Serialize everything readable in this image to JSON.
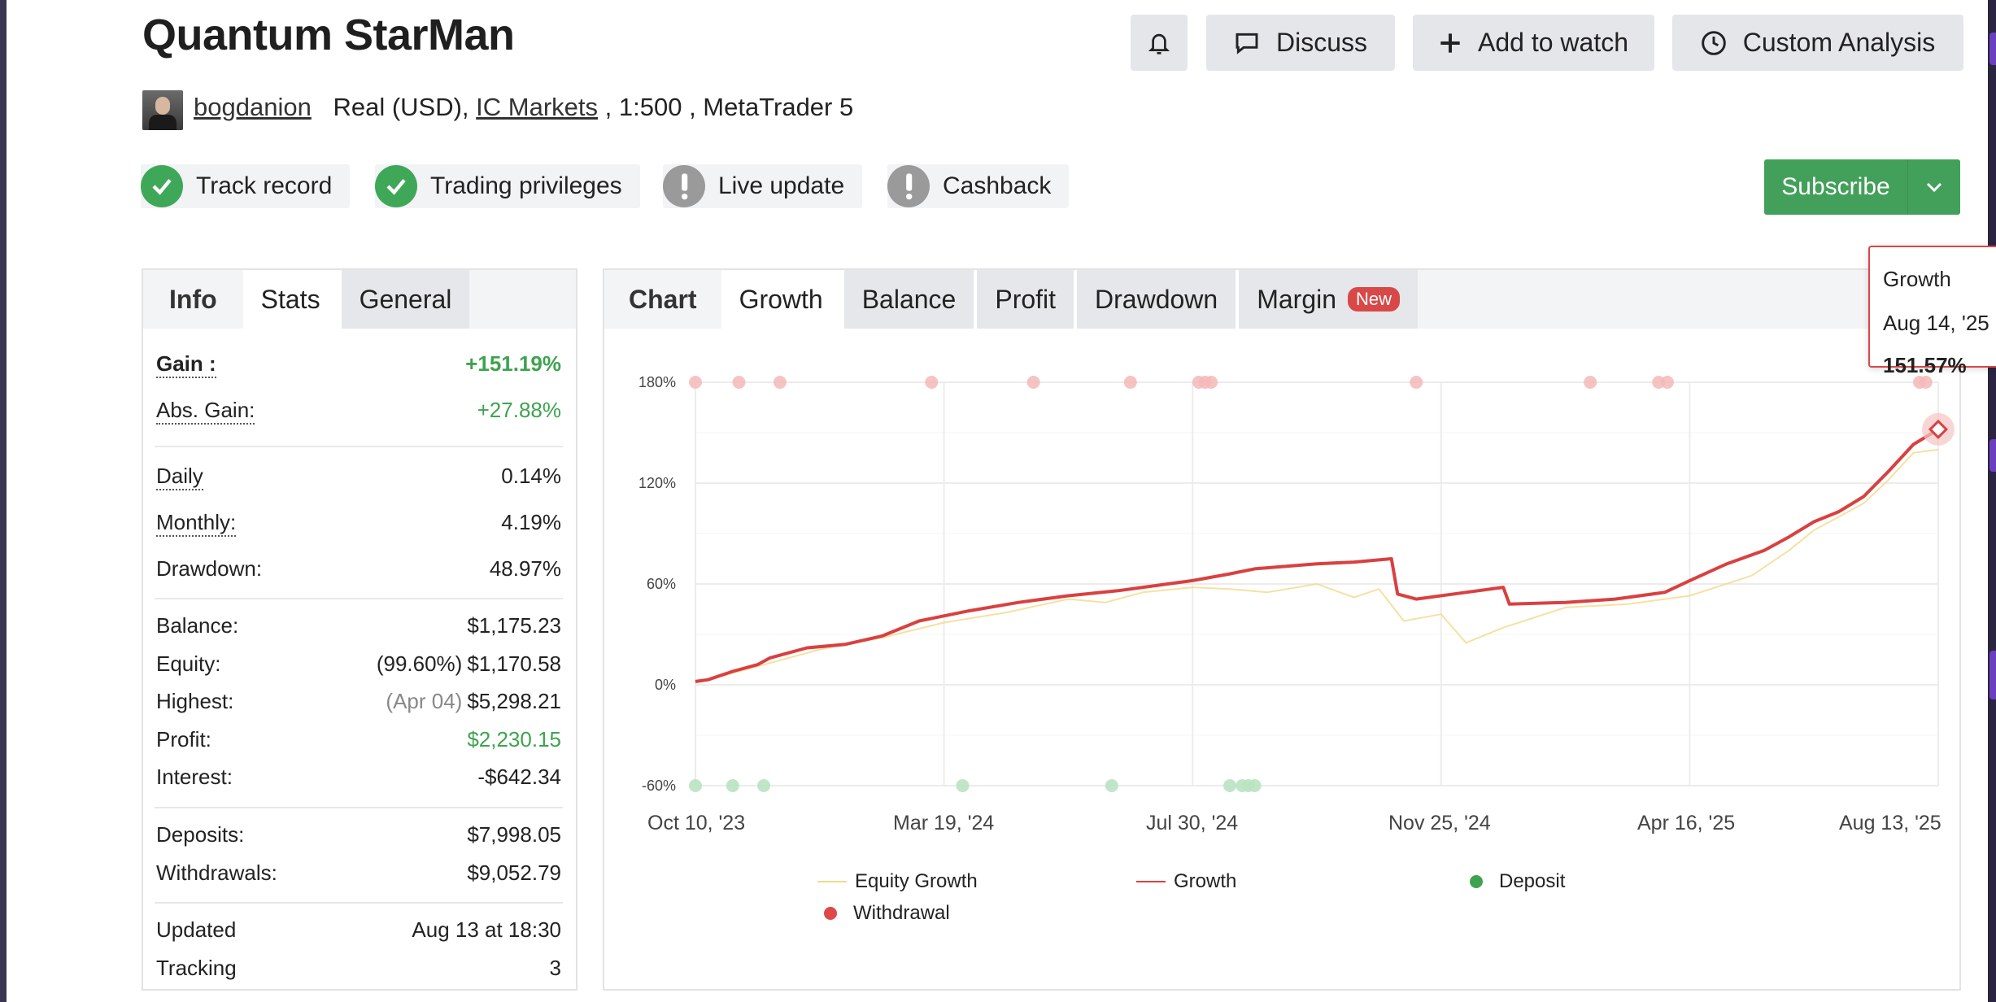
{
  "header": {
    "title": "Quantum StarMan",
    "bell_icon": "bell-icon",
    "discuss_label": "Discuss",
    "add_watch_label": "Add to watch",
    "custom_analysis_label": "Custom Analysis"
  },
  "account": {
    "username": "bogdanion",
    "account_type": "Real (USD),",
    "broker": "IC Markets",
    "leverage": ", 1:500 , MetaTrader 5"
  },
  "badges": [
    {
      "label": "Track record",
      "status": "ok"
    },
    {
      "label": "Trading privileges",
      "status": "ok"
    },
    {
      "label": "Live update",
      "status": "warn"
    },
    {
      "label": "Cashback",
      "status": "warn"
    }
  ],
  "subscribe": {
    "label": "Subscribe"
  },
  "stats_panel": {
    "tabs": {
      "info": "Info",
      "stats": "Stats",
      "general": "General"
    },
    "gain_label": "Gain :",
    "gain_value": "+151.19%",
    "abs_gain_label": "Abs. Gain:",
    "abs_gain_value": "+27.88%",
    "daily_label": "Daily",
    "daily_value": "0.14%",
    "monthly_label": "Monthly:",
    "monthly_value": "4.19%",
    "drawdown_label": "Drawdown:",
    "drawdown_value": "48.97%",
    "balance_label": "Balance:",
    "balance_value": "$1,175.23",
    "equity_label": "Equity:",
    "equity_pct": "(99.60%)",
    "equity_value": "$1,170.58",
    "highest_label": "Highest:",
    "highest_date": "(Apr 04)",
    "highest_value": "$5,298.21",
    "profit_label": "Profit:",
    "profit_value": "$2,230.15",
    "interest_label": "Interest:",
    "interest_value": "-$642.34",
    "deposits_label": "Deposits:",
    "deposits_value": "$7,998.05",
    "withdrawals_label": "Withdrawals:",
    "withdrawals_value": "$9,052.79",
    "updated_label": "Updated",
    "updated_value": "Aug 13 at 18:30",
    "tracking_label": "Tracking",
    "tracking_value": "3"
  },
  "chart_panel": {
    "tabs": {
      "chart": "Chart",
      "growth": "Growth",
      "balance": "Balance",
      "profit": "Profit",
      "drawdown": "Drawdown",
      "margin": "Margin",
      "new_badge": "New"
    },
    "tooltip": {
      "series": "Growth",
      "date": "Aug 14, '25",
      "value": "151.57%"
    }
  },
  "colors": {
    "growth": "#d94040",
    "equity": "#f2d98a",
    "deposit": "#3ea34f",
    "withdrawal": "#e04848",
    "accent_green": "#43a05a"
  },
  "chart_data": {
    "type": "line",
    "title": "",
    "xlabel": "",
    "ylabel": "",
    "ylim": [
      -60,
      180
    ],
    "y_ticks": [
      "180%",
      "120%",
      "60%",
      "0%",
      "-60%"
    ],
    "y_tick_values": [
      180,
      120,
      60,
      0,
      -60
    ],
    "x_ticks": [
      "Oct 10, '23",
      "Mar 19, '24",
      "Jul 30, '24",
      "Nov 25, '24",
      "Apr 16, '25",
      "Aug 13, '25"
    ],
    "legend": [
      {
        "name": "Equity Growth",
        "color": "#f2d98a"
      },
      {
        "name": "Growth",
        "color": "#d94040"
      },
      {
        "name": "Deposit",
        "color": "#3ea34f"
      },
      {
        "name": "Withdrawal",
        "color": "#e04848"
      }
    ],
    "series": [
      {
        "name": "Growth",
        "x": [
          0,
          0.01,
          0.03,
          0.05,
          0.06,
          0.075,
          0.09,
          0.12,
          0.15,
          0.18,
          0.22,
          0.26,
          0.3,
          0.34,
          0.38,
          0.4,
          0.43,
          0.45,
          0.5,
          0.53,
          0.56,
          0.565,
          0.58,
          0.62,
          0.65,
          0.655,
          0.7,
          0.74,
          0.78,
          0.8,
          0.83,
          0.86,
          0.88,
          0.9,
          0.92,
          0.94,
          0.96,
          0.98,
          1.0
        ],
        "values": [
          2,
          3,
          8,
          12,
          16,
          19,
          22,
          24,
          29,
          38,
          44,
          49,
          53,
          56,
          60,
          62,
          66,
          69,
          72,
          73,
          75,
          54,
          51,
          55,
          58,
          48,
          49,
          51,
          55,
          62,
          72,
          80,
          88,
          97,
          103,
          112,
          127,
          143,
          152
        ]
      },
      {
        "name": "Equity Growth",
        "x": [
          0,
          0.05,
          0.1,
          0.15,
          0.2,
          0.25,
          0.3,
          0.33,
          0.36,
          0.4,
          0.43,
          0.46,
          0.5,
          0.53,
          0.55,
          0.57,
          0.6,
          0.62,
          0.65,
          0.7,
          0.75,
          0.8,
          0.85,
          0.88,
          0.9,
          0.94,
          0.96,
          0.98,
          1.0
        ],
        "values": [
          1,
          11,
          21,
          28,
          37,
          43,
          51,
          49,
          55,
          58,
          57,
          55,
          60,
          52,
          57,
          38,
          42,
          25,
          34,
          46,
          48,
          53,
          65,
          80,
          92,
          108,
          122,
          138,
          140
        ]
      }
    ],
    "withdrawal_markers_x": [
      0.0,
      0.035,
      0.068,
      0.19,
      0.272,
      0.35,
      0.405,
      0.41,
      0.415,
      0.58,
      0.72,
      0.775,
      0.782,
      0.985,
      0.99
    ],
    "deposit_markers_x": [
      0.0,
      0.03,
      0.055,
      0.215,
      0.335,
      0.43,
      0.44,
      0.445,
      0.45
    ]
  }
}
